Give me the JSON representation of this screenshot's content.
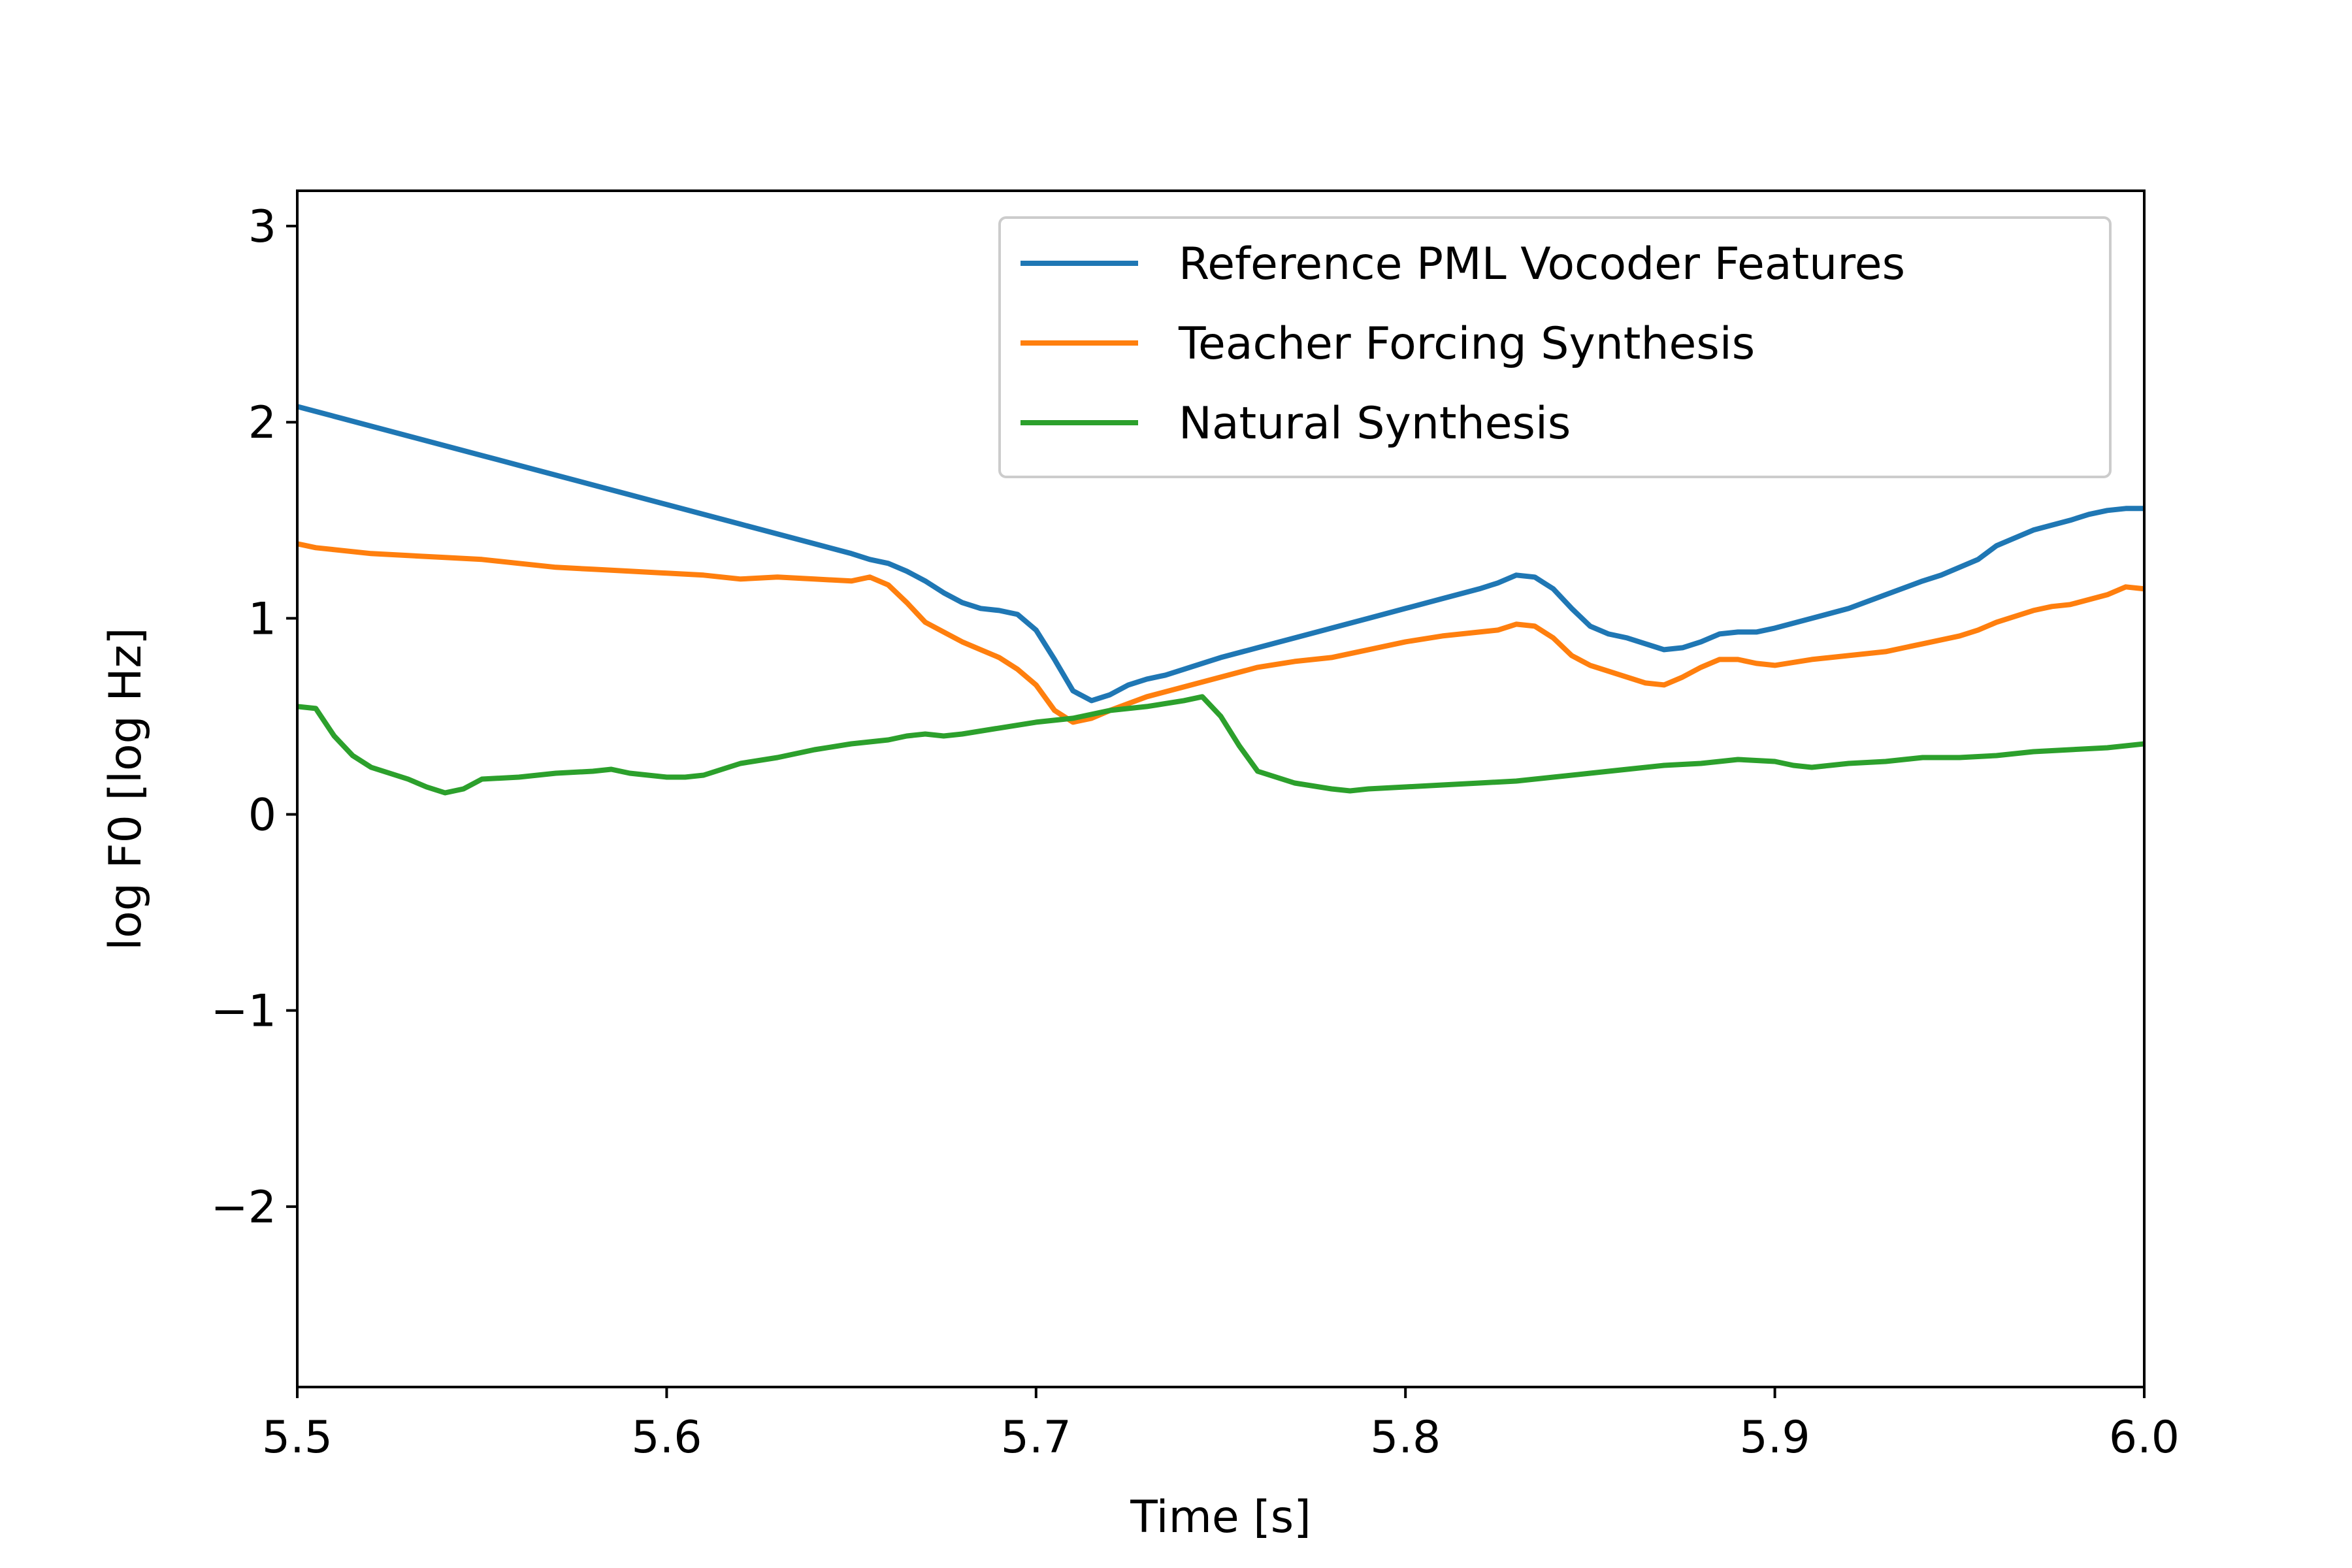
{
  "chart_data": {
    "type": "line",
    "title": "",
    "xlabel": "Time [s]",
    "ylabel": "log F0 [log Hz]",
    "xlim": [
      5.5,
      6.0
    ],
    "ylim": [
      -2.92,
      3.18
    ],
    "xticks": [
      5.5,
      5.6,
      5.7,
      5.8,
      5.9,
      6.0
    ],
    "xtick_labels": [
      "5.5",
      "5.6",
      "5.7",
      "5.8",
      "5.9",
      "6.0"
    ],
    "yticks": [
      3,
      2,
      1,
      0,
      -1,
      -2
    ],
    "ytick_labels": [
      "3",
      "2",
      "1",
      "0",
      "−1",
      "−2"
    ],
    "grid": false,
    "legend_position": "top-right",
    "series": [
      {
        "name": "Reference PML Vocoder Features",
        "color": "#1f77b4",
        "x": [
          5.5,
          5.51,
          5.52,
          5.53,
          5.54,
          5.55,
          5.56,
          5.57,
          5.58,
          5.59,
          5.6,
          5.61,
          5.62,
          5.63,
          5.64,
          5.65,
          5.655,
          5.66,
          5.665,
          5.67,
          5.675,
          5.68,
          5.685,
          5.69,
          5.695,
          5.7,
          5.705,
          5.71,
          5.715,
          5.72,
          5.725,
          5.73,
          5.735,
          5.74,
          5.75,
          5.76,
          5.77,
          5.78,
          5.79,
          5.8,
          5.81,
          5.82,
          5.825,
          5.83,
          5.835,
          5.84,
          5.845,
          5.85,
          5.855,
          5.86,
          5.865,
          5.87,
          5.875,
          5.88,
          5.885,
          5.89,
          5.895,
          5.9,
          5.91,
          5.92,
          5.93,
          5.94,
          5.945,
          5.95,
          5.955,
          5.96,
          5.97,
          5.98,
          5.985,
          5.99,
          5.995,
          6.0
        ],
        "y": [
          2.08,
          2.03,
          1.98,
          1.93,
          1.88,
          1.83,
          1.78,
          1.73,
          1.68,
          1.63,
          1.58,
          1.53,
          1.48,
          1.43,
          1.38,
          1.33,
          1.3,
          1.28,
          1.24,
          1.19,
          1.13,
          1.08,
          1.05,
          1.04,
          1.02,
          0.94,
          0.79,
          0.63,
          0.58,
          0.61,
          0.66,
          0.69,
          0.71,
          0.74,
          0.8,
          0.85,
          0.9,
          0.95,
          1.0,
          1.05,
          1.1,
          1.15,
          1.18,
          1.22,
          1.21,
          1.15,
          1.05,
          0.96,
          0.92,
          0.9,
          0.87,
          0.84,
          0.85,
          0.88,
          0.92,
          0.93,
          0.93,
          0.95,
          1.0,
          1.05,
          1.12,
          1.19,
          1.22,
          1.26,
          1.3,
          1.37,
          1.45,
          1.5,
          1.53,
          1.55,
          1.56,
          1.56
        ]
      },
      {
        "name": "Teacher Forcing Synthesis",
        "color": "#ff7f0e",
        "x": [
          5.5,
          5.505,
          5.51,
          5.515,
          5.52,
          5.53,
          5.54,
          5.55,
          5.56,
          5.57,
          5.58,
          5.59,
          5.6,
          5.61,
          5.62,
          5.63,
          5.64,
          5.65,
          5.655,
          5.66,
          5.665,
          5.67,
          5.675,
          5.68,
          5.685,
          5.69,
          5.695,
          5.7,
          5.705,
          5.71,
          5.715,
          5.72,
          5.73,
          5.74,
          5.75,
          5.76,
          5.77,
          5.78,
          5.79,
          5.8,
          5.81,
          5.82,
          5.825,
          5.83,
          5.835,
          5.84,
          5.845,
          5.85,
          5.855,
          5.86,
          5.865,
          5.87,
          5.875,
          5.88,
          5.885,
          5.89,
          5.895,
          5.9,
          5.91,
          5.92,
          5.93,
          5.94,
          5.95,
          5.955,
          5.96,
          5.97,
          5.975,
          5.98,
          5.99,
          5.995,
          6.0
        ],
        "y": [
          1.38,
          1.36,
          1.35,
          1.34,
          1.33,
          1.32,
          1.31,
          1.3,
          1.28,
          1.26,
          1.25,
          1.24,
          1.23,
          1.22,
          1.2,
          1.21,
          1.2,
          1.19,
          1.21,
          1.17,
          1.08,
          0.98,
          0.93,
          0.88,
          0.84,
          0.8,
          0.74,
          0.66,
          0.53,
          0.47,
          0.49,
          0.53,
          0.6,
          0.65,
          0.7,
          0.75,
          0.78,
          0.8,
          0.84,
          0.88,
          0.91,
          0.93,
          0.94,
          0.97,
          0.96,
          0.9,
          0.81,
          0.76,
          0.73,
          0.7,
          0.67,
          0.66,
          0.7,
          0.75,
          0.79,
          0.79,
          0.77,
          0.76,
          0.79,
          0.81,
          0.83,
          0.87,
          0.91,
          0.94,
          0.98,
          1.04,
          1.06,
          1.07,
          1.12,
          1.16,
          1.15
        ]
      },
      {
        "name": "Natural Synthesis",
        "color": "#2ca02c",
        "x": [
          5.5,
          5.505,
          5.51,
          5.515,
          5.52,
          5.525,
          5.53,
          5.535,
          5.54,
          5.545,
          5.55,
          5.56,
          5.57,
          5.58,
          5.585,
          5.59,
          5.595,
          5.6,
          5.605,
          5.61,
          5.62,
          5.63,
          5.64,
          5.65,
          5.66,
          5.665,
          5.67,
          5.675,
          5.68,
          5.69,
          5.7,
          5.705,
          5.71,
          5.72,
          5.73,
          5.74,
          5.745,
          5.75,
          5.755,
          5.76,
          5.765,
          5.77,
          5.78,
          5.785,
          5.79,
          5.8,
          5.81,
          5.82,
          5.83,
          5.84,
          5.85,
          5.86,
          5.87,
          5.88,
          5.89,
          5.9,
          5.905,
          5.91,
          5.915,
          5.92,
          5.93,
          5.94,
          5.95,
          5.96,
          5.97,
          5.98,
          5.99,
          6.0
        ],
        "y": [
          0.55,
          0.54,
          0.4,
          0.3,
          0.24,
          0.21,
          0.18,
          0.14,
          0.11,
          0.13,
          0.18,
          0.19,
          0.21,
          0.22,
          0.23,
          0.21,
          0.2,
          0.19,
          0.19,
          0.2,
          0.26,
          0.29,
          0.33,
          0.36,
          0.38,
          0.4,
          0.41,
          0.4,
          0.41,
          0.44,
          0.47,
          0.48,
          0.49,
          0.53,
          0.55,
          0.58,
          0.6,
          0.5,
          0.35,
          0.22,
          0.19,
          0.16,
          0.13,
          0.12,
          0.13,
          0.14,
          0.15,
          0.16,
          0.17,
          0.19,
          0.21,
          0.23,
          0.25,
          0.26,
          0.28,
          0.27,
          0.25,
          0.24,
          0.25,
          0.26,
          0.27,
          0.29,
          0.29,
          0.3,
          0.32,
          0.33,
          0.34,
          0.36
        ]
      }
    ]
  }
}
